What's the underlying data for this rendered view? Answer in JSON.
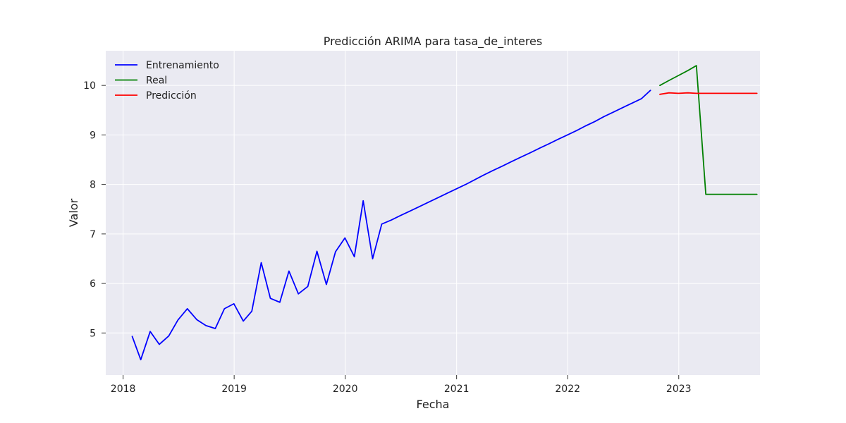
{
  "chart_data": {
    "type": "line",
    "title": "Predicción ARIMA para tasa_de_interes",
    "xlabel": "Fecha",
    "ylabel": "Valor",
    "xlim": [
      "2017-11-05",
      "2023-09-25"
    ],
    "ylim": [
      4.15,
      10.7
    ],
    "x_ticks": [
      "2018",
      "2019",
      "2020",
      "2021",
      "2022",
      "2023"
    ],
    "y_ticks": [
      5,
      6,
      7,
      8,
      9,
      10
    ],
    "grid": true,
    "legend_position": "top-left",
    "colors": {
      "background": "#eaeaf2",
      "grid": "#ffffff"
    },
    "series": [
      {
        "name": "Entrenamiento",
        "color": "#0000ff",
        "points": [
          [
            "2018-01-31",
            4.93
          ],
          [
            "2018-02-28",
            4.46
          ],
          [
            "2018-03-31",
            5.03
          ],
          [
            "2018-04-30",
            4.77
          ],
          [
            "2018-05-31",
            4.94
          ],
          [
            "2018-06-30",
            5.26
          ],
          [
            "2018-07-31",
            5.49
          ],
          [
            "2018-08-31",
            5.27
          ],
          [
            "2018-09-30",
            5.15
          ],
          [
            "2018-10-31",
            5.09
          ],
          [
            "2018-11-30",
            5.49
          ],
          [
            "2018-12-31",
            5.59
          ],
          [
            "2019-01-31",
            5.24
          ],
          [
            "2019-02-28",
            5.44
          ],
          [
            "2019-03-31",
            6.42
          ],
          [
            "2019-04-30",
            5.7
          ],
          [
            "2019-05-31",
            5.62
          ],
          [
            "2019-06-30",
            6.25
          ],
          [
            "2019-07-31",
            5.79
          ],
          [
            "2019-08-31",
            5.94
          ],
          [
            "2019-09-30",
            6.65
          ],
          [
            "2019-10-31",
            5.98
          ],
          [
            "2019-11-30",
            6.64
          ],
          [
            "2019-12-31",
            6.92
          ],
          [
            "2020-01-31",
            6.54
          ],
          [
            "2020-02-29",
            7.67
          ],
          [
            "2020-03-31",
            6.5
          ],
          [
            "2020-04-30",
            7.2
          ],
          [
            "2020-05-31",
            7.28
          ],
          [
            "2020-06-30",
            7.37
          ],
          [
            "2020-07-31",
            7.46
          ],
          [
            "2020-08-31",
            7.55
          ],
          [
            "2020-09-30",
            7.64
          ],
          [
            "2020-10-31",
            7.73
          ],
          [
            "2020-11-30",
            7.82
          ],
          [
            "2020-12-31",
            7.91
          ],
          [
            "2021-01-31",
            8.0
          ],
          [
            "2021-02-28",
            8.09
          ],
          [
            "2021-03-31",
            8.19
          ],
          [
            "2021-04-30",
            8.28
          ],
          [
            "2021-05-31",
            8.37
          ],
          [
            "2021-06-30",
            8.46
          ],
          [
            "2021-07-31",
            8.55
          ],
          [
            "2021-08-31",
            8.64
          ],
          [
            "2021-09-30",
            8.73
          ],
          [
            "2021-10-31",
            8.82
          ],
          [
            "2021-11-30",
            8.91
          ],
          [
            "2021-12-31",
            9.0
          ],
          [
            "2022-01-31",
            9.09
          ],
          [
            "2022-02-28",
            9.18
          ],
          [
            "2022-03-31",
            9.27
          ],
          [
            "2022-04-30",
            9.37
          ],
          [
            "2022-05-31",
            9.46
          ],
          [
            "2022-06-30",
            9.55
          ],
          [
            "2022-07-31",
            9.64
          ],
          [
            "2022-08-31",
            9.73
          ],
          [
            "2022-09-30",
            9.9
          ]
        ]
      },
      {
        "name": "Real",
        "color": "#008000",
        "points": [
          [
            "2022-10-31",
            10.0
          ],
          [
            "2022-11-30",
            10.1
          ],
          [
            "2022-12-31",
            10.2
          ],
          [
            "2023-01-31",
            10.3
          ],
          [
            "2023-02-28",
            10.4
          ],
          [
            "2023-03-31",
            7.8
          ],
          [
            "2023-04-30",
            7.8
          ],
          [
            "2023-05-31",
            7.8
          ],
          [
            "2023-06-30",
            7.8
          ],
          [
            "2023-07-31",
            7.8
          ],
          [
            "2023-08-31",
            7.8
          ],
          [
            "2023-09-15",
            7.8
          ]
        ]
      },
      {
        "name": "Predicción",
        "color": "#ff0000",
        "points": [
          [
            "2022-10-31",
            9.82
          ],
          [
            "2022-11-30",
            9.85
          ],
          [
            "2022-12-31",
            9.84
          ],
          [
            "2023-01-31",
            9.85
          ],
          [
            "2023-02-28",
            9.84
          ],
          [
            "2023-03-31",
            9.84
          ],
          [
            "2023-04-30",
            9.84
          ],
          [
            "2023-05-31",
            9.84
          ],
          [
            "2023-06-30",
            9.84
          ],
          [
            "2023-07-31",
            9.84
          ],
          [
            "2023-08-31",
            9.84
          ],
          [
            "2023-09-15",
            9.84
          ]
        ]
      }
    ]
  }
}
